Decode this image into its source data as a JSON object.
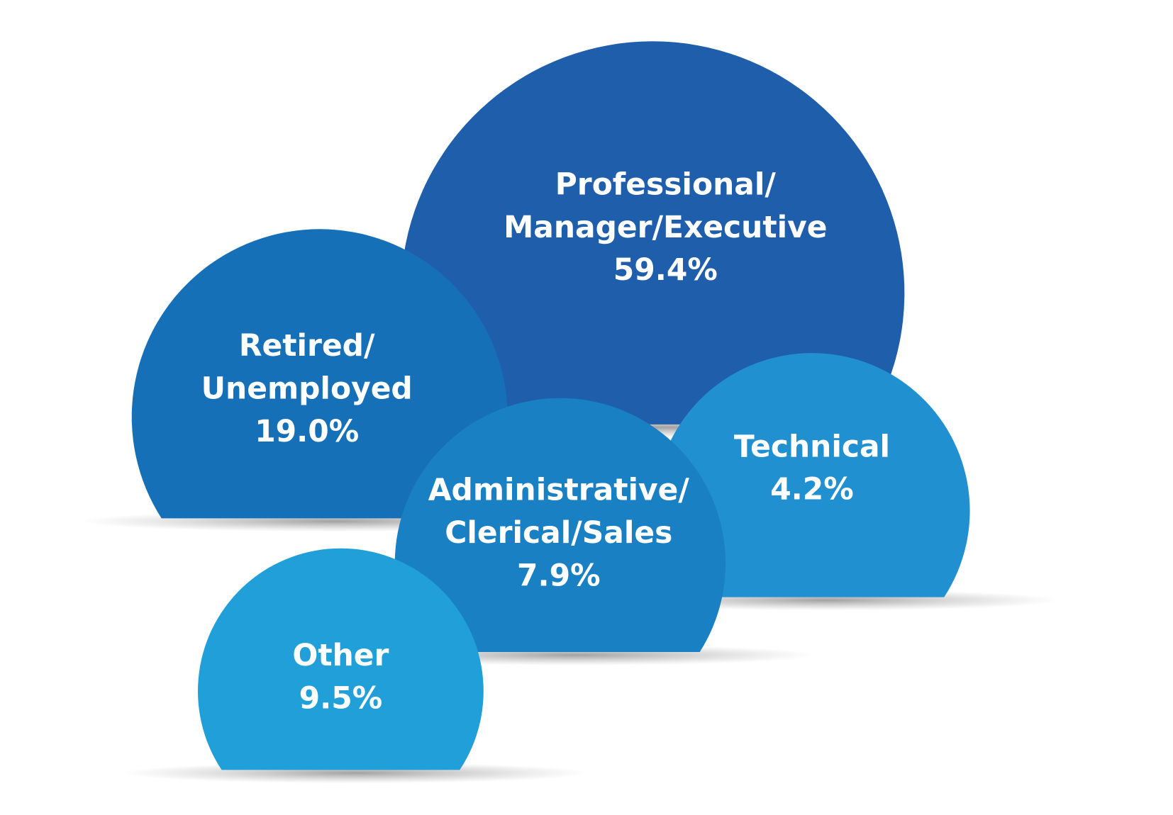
{
  "chart_data": {
    "type": "bubble",
    "categories": [
      [
        "Professional/",
        "Manager/Executive"
      ],
      [
        "Retired/",
        "Unemployed"
      ],
      [
        "Technical"
      ],
      [
        "Administrative/",
        "Clerical/Sales"
      ],
      [
        "Other"
      ]
    ],
    "values": [
      59.4,
      19.0,
      4.2,
      7.9,
      9.5
    ],
    "value_labels": [
      "59.4%",
      "19.0%",
      "4.2%",
      "7.9%",
      "9.5%"
    ],
    "colors": [
      "#1f5eab",
      "#1570b8",
      "#2090d0",
      "#1a80c4",
      "#209fd8"
    ]
  }
}
